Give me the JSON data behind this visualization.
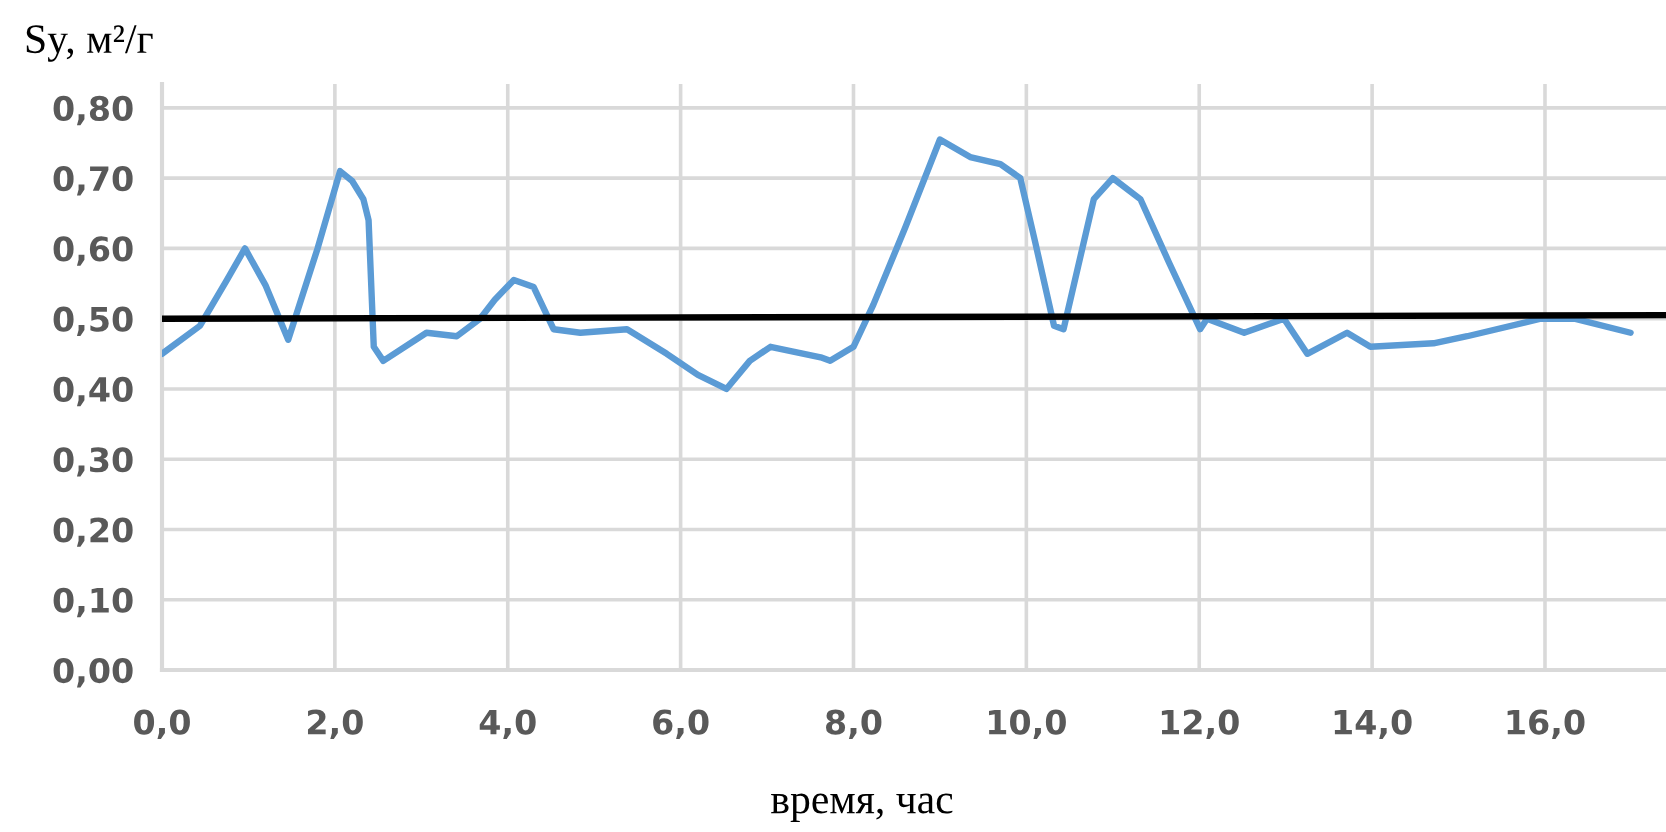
{
  "chart_data": {
    "type": "line",
    "xlabel": "время, час",
    "ylabel": "Sy, м²/г",
    "xlim": [
      0,
      17.4
    ],
    "ylim": [
      0,
      0.834
    ],
    "xticks": [
      {
        "value": 0,
        "label": "0,0"
      },
      {
        "value": 2,
        "label": "2,0"
      },
      {
        "value": 4,
        "label": "4,0"
      },
      {
        "value": 6,
        "label": "6,0"
      },
      {
        "value": 8,
        "label": "8,0"
      },
      {
        "value": 10,
        "label": "10,0"
      },
      {
        "value": 12,
        "label": "12,0"
      },
      {
        "value": 14,
        "label": "14,0"
      },
      {
        "value": 16,
        "label": "16,0"
      }
    ],
    "yticks": [
      {
        "value": 0,
        "label": "0,00"
      },
      {
        "value": 0.1,
        "label": "0,10"
      },
      {
        "value": 0.2,
        "label": "0,20"
      },
      {
        "value": 0.3,
        "label": "0,30"
      },
      {
        "value": 0.4,
        "label": "0,40"
      },
      {
        "value": 0.5,
        "label": "0,50"
      },
      {
        "value": 0.6,
        "label": "0,60"
      },
      {
        "value": 0.7,
        "label": "0,70"
      },
      {
        "value": 0.8,
        "label": "0,80"
      }
    ],
    "grid": true,
    "series": [
      {
        "color": "#5b9bd5",
        "x": [
          0,
          0.44,
          0.75,
          0.96,
          1.2,
          1.46,
          1.8,
          2.06,
          2.2,
          2.33,
          2.39,
          2.45,
          2.56,
          3.06,
          3.41,
          3.68,
          3.85,
          4.07,
          4.3,
          4.53,
          4.84,
          5.38,
          5.84,
          6.2,
          6.53,
          6.8,
          7.04,
          7.62,
          7.73,
          8.0,
          8.23,
          8.6,
          9.0,
          9.35,
          9.7,
          9.93,
          10.1,
          10.32,
          10.43,
          10.6,
          10.78,
          11.0,
          11.32,
          11.65,
          12.01,
          12.09,
          12.52,
          12.98,
          13.25,
          13.71,
          13.98,
          14.71,
          15.1,
          15.95,
          16.34,
          16.99
        ],
        "values": [
          0.45,
          0.49,
          0.555,
          0.6,
          0.547,
          0.47,
          0.6,
          0.71,
          0.696,
          0.67,
          0.64,
          0.46,
          0.44,
          0.48,
          0.475,
          0.5,
          0.527,
          0.555,
          0.545,
          0.485,
          0.48,
          0.485,
          0.45,
          0.42,
          0.4,
          0.44,
          0.46,
          0.445,
          0.44,
          0.46,
          0.52,
          0.63,
          0.755,
          0.73,
          0.72,
          0.7,
          0.61,
          0.49,
          0.485,
          0.575,
          0.67,
          0.7,
          0.67,
          0.58,
          0.485,
          0.5,
          0.48,
          0.5,
          0.45,
          0.48,
          0.46,
          0.465,
          0.475,
          0.5,
          0.5,
          0.48
        ]
      },
      {
        "type": "line",
        "color": "#000000",
        "x": [
          0,
          17.4
        ],
        "values": [
          0.5,
          0.505
        ]
      }
    ]
  }
}
